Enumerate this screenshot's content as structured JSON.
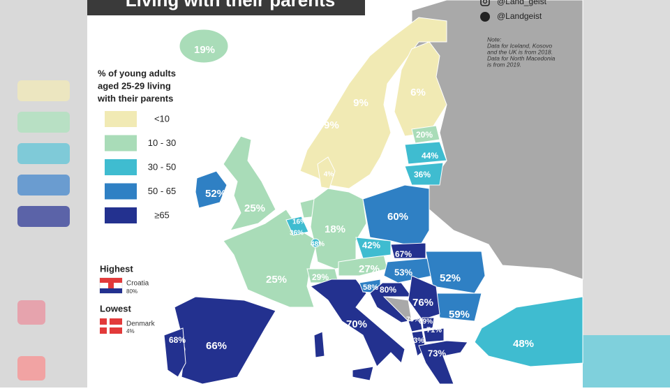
{
  "header": {
    "title": "Living with their parents",
    "social": [
      "@Land_geist",
      "@Landgeist"
    ]
  },
  "note": [
    "Note:",
    "Data for Iceland, Kosovo",
    "and the UK is from 2018.",
    "Data for North Macedonia",
    "is from 2019."
  ],
  "legend": {
    "title": [
      "% of young adults",
      "aged 25-29 living",
      "with their parents"
    ],
    "items": [
      {
        "label": "<10",
        "color": "#f1eab4"
      },
      {
        "label": "10 - 30",
        "color": "#a9dcb8"
      },
      {
        "label": "30 - 50",
        "color": "#3fbcd0"
      },
      {
        "label": "50 - 65",
        "color": "#2f80c4"
      },
      {
        "label": "≥65",
        "color": "#23318f"
      }
    ]
  },
  "highest": {
    "heading": "Highest",
    "country": "Croatia",
    "value": "80%"
  },
  "lowest": {
    "heading": "Lowest",
    "country": "Denmark",
    "value": "4%"
  },
  "regions": [
    {
      "label": "19%"
    },
    {
      "label": "9%"
    },
    {
      "label": "9%"
    },
    {
      "label": "6%"
    },
    {
      "label": "4%"
    },
    {
      "label": "20%"
    },
    {
      "label": "44%"
    },
    {
      "label": "36%"
    },
    {
      "label": "52%"
    },
    {
      "label": "25%"
    },
    {
      "label": "25%"
    },
    {
      "label": "66%"
    },
    {
      "label": "68%"
    },
    {
      "label": "18%"
    },
    {
      "label": "16%"
    },
    {
      "label": "36%"
    },
    {
      "label": "48%"
    },
    {
      "label": "29%"
    },
    {
      "label": "27%"
    },
    {
      "label": "60%"
    },
    {
      "label": "42%"
    },
    {
      "label": "67%"
    },
    {
      "label": "53%"
    },
    {
      "label": "52%"
    },
    {
      "label": "59%"
    },
    {
      "label": "70%"
    },
    {
      "label": "58%"
    },
    {
      "label": "80%"
    },
    {
      "label": "76%"
    },
    {
      "label": "79%"
    },
    {
      "label": "69%"
    },
    {
      "label": "71%"
    },
    {
      "label": "73%"
    },
    {
      "label": "73%"
    },
    {
      "label": "48%"
    }
  ]
}
